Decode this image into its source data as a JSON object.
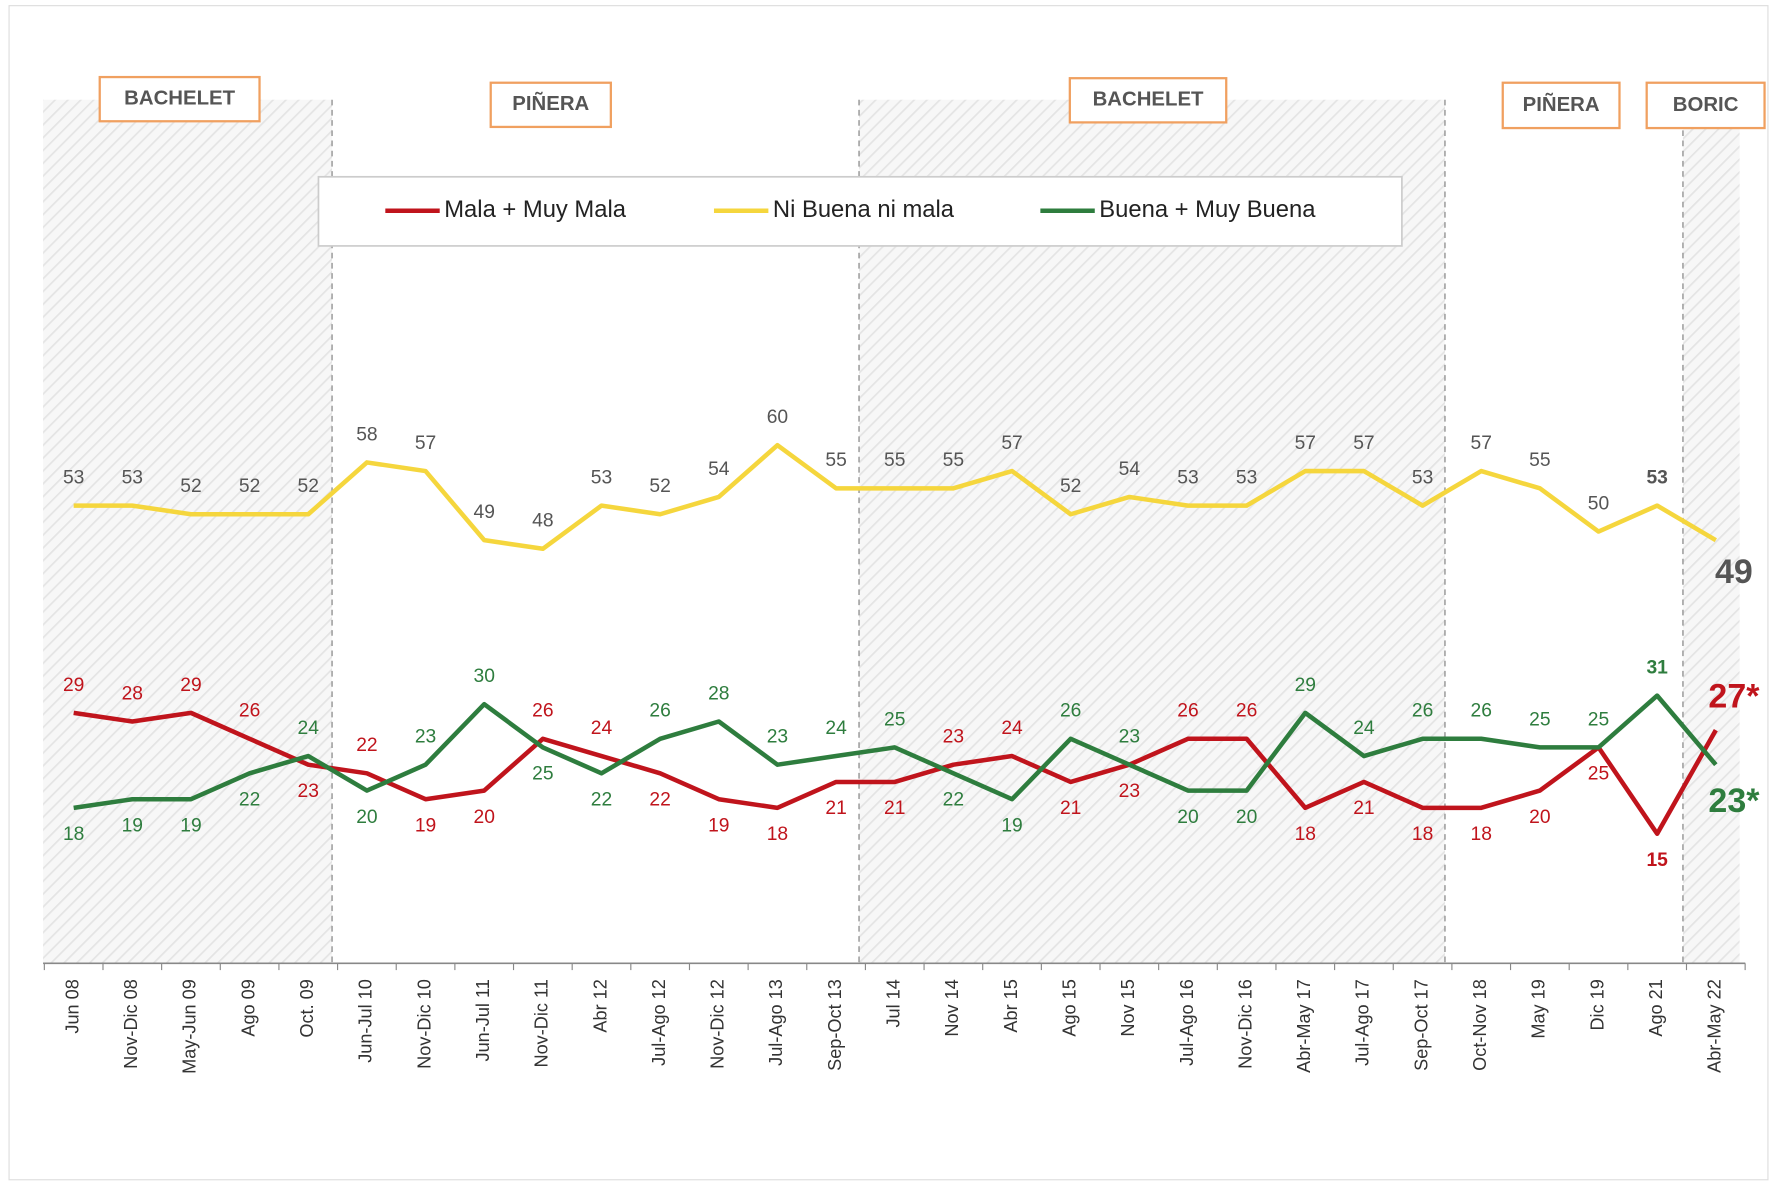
{
  "chart_data": {
    "type": "line",
    "categories": [
      "Jun 08",
      "Nov-Dic 08",
      "May-Jun 09",
      "Ago 09",
      "Oct. 09",
      "Jun-Jul 10",
      "Nov-Dic 10",
      "Jun-Jul 11",
      "Nov-Dic 11",
      "Abr 12",
      "Jul-Ago 12",
      "Nov-Dic 12",
      "Jul-Ago 13",
      "Sep-Oct 13",
      "Jul 14",
      "Nov 14",
      "Abr 15",
      "Ago 15",
      "Nov 15",
      "Jul-Ago 16",
      "Nov-Dic 16",
      "Abr-May 17",
      "Jul-Ago 17",
      "Sep-Oct 17",
      "Oct-Nov 18",
      "May 19",
      "Dic 19",
      "Ago 21",
      "Abr-May 22"
    ],
    "series": [
      {
        "name": "Mala + Muy Mala",
        "color": "#c0141c",
        "values": [
          29,
          28,
          29,
          26,
          23,
          22,
          19,
          20,
          26,
          24,
          22,
          19,
          18,
          21,
          21,
          23,
          24,
          21,
          23,
          26,
          26,
          18,
          21,
          18,
          18,
          20,
          25,
          15,
          27
        ],
        "value_labels": [
          "29",
          "28",
          "29",
          "26",
          "23",
          "22",
          "19",
          "20",
          "26",
          "24",
          "22",
          "19",
          "18",
          "21",
          "21",
          "23",
          "24",
          "21",
          "23",
          "26",
          "26",
          "18",
          "21",
          "18",
          "18",
          "20",
          "25",
          "15",
          "27*"
        ]
      },
      {
        "name": "Ni Buena ni mala",
        "color": "#f5d63d",
        "values": [
          53,
          53,
          52,
          52,
          52,
          58,
          57,
          49,
          48,
          53,
          52,
          54,
          60,
          55,
          55,
          55,
          57,
          52,
          54,
          53,
          53,
          57,
          57,
          53,
          57,
          55,
          50,
          53,
          49
        ]
      },
      {
        "name": "Buena + Muy Buena",
        "color": "#2e7d3e",
        "values": [
          18,
          19,
          19,
          22,
          24,
          20,
          23,
          30,
          25,
          22,
          26,
          28,
          23,
          24,
          25,
          22,
          19,
          26,
          23,
          20,
          20,
          29,
          24,
          26,
          26,
          25,
          25,
          31,
          23
        ],
        "value_labels": [
          "18",
          "19",
          "19",
          "22",
          "24",
          "20",
          "23",
          "30",
          "25",
          "22",
          "26",
          "28",
          "23",
          "24",
          "25",
          "22",
          "19",
          "26",
          "23",
          "20",
          "20",
          "29",
          "24",
          "26",
          "26",
          "25",
          "25",
          "31",
          "23*"
        ]
      }
    ],
    "periods": [
      "BACHELET",
      "PIÑERA",
      "BACHELET",
      "PIÑERA",
      "BORIC"
    ],
    "ylim": [
      0,
      100
    ]
  }
}
